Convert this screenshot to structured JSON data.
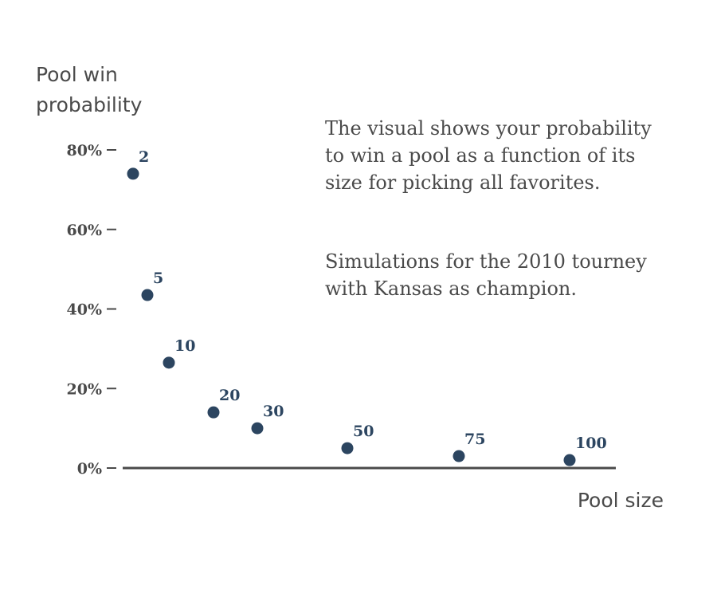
{
  "chart_data": {
    "type": "scatter",
    "ylabel_lines": [
      "Pool win",
      "probability"
    ],
    "xlabel": "Pool size",
    "yticks": [
      {
        "value": 0,
        "label": "0%"
      },
      {
        "value": 20,
        "label": "20%"
      },
      {
        "value": 40,
        "label": "40%"
      },
      {
        "value": 60,
        "label": "60%"
      },
      {
        "value": 80,
        "label": "80%"
      }
    ],
    "ylim": [
      0,
      80
    ],
    "grid": false,
    "points": [
      {
        "x": 2,
        "y": 74,
        "label": "2"
      },
      {
        "x": 5,
        "y": 43.5,
        "label": "5"
      },
      {
        "x": 10,
        "y": 26.5,
        "label": "10"
      },
      {
        "x": 20,
        "y": 14,
        "label": "20"
      },
      {
        "x": 30,
        "y": 10,
        "label": "30"
      },
      {
        "x": 50,
        "y": 5,
        "label": "50"
      },
      {
        "x": 75,
        "y": 3,
        "label": "75"
      },
      {
        "x": 100,
        "y": 2,
        "label": "100"
      }
    ],
    "annotations": [
      {
        "lines": [
          "The visual shows your probability",
          "to win a pool as a function of its",
          "size for picking all favorites."
        ]
      },
      {
        "lines": [
          "Simulations for the 2010 tourney",
          "with Kansas as champion."
        ]
      }
    ]
  }
}
